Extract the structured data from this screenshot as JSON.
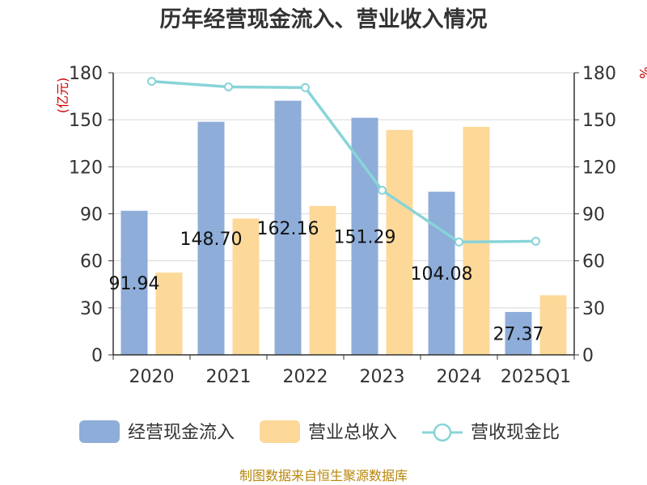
{
  "title": "历年经营现金流入、营业收入情况",
  "source": "制图数据来自恒生聚源数据库",
  "colors": {
    "bar1": "#8eadd9",
    "bar2": "#fdd999",
    "line": "#88d4d8",
    "axis": "#333333",
    "grid": "#d8d8d8"
  },
  "chart_data": {
    "type": "bar",
    "title": "历年经营现金流入、营业收入情况",
    "categories": [
      "2020",
      "2021",
      "2022",
      "2023",
      "2024",
      "2025Q1"
    ],
    "y_left": {
      "label": "(亿元)",
      "ylim": [
        0,
        180
      ],
      "ticks": [
        "0",
        "30",
        "60",
        "90",
        "120",
        "150",
        "180"
      ]
    },
    "y_right": {
      "label": "%",
      "ylim": [
        0,
        180
      ],
      "ticks": [
        "0",
        "30",
        "60",
        "90",
        "120",
        "150",
        "180"
      ]
    },
    "series": [
      {
        "name": "经营现金流入",
        "type": "bar",
        "axis": "left",
        "values": [
          91.94,
          148.7,
          162.16,
          151.29,
          104.08,
          27.37
        ]
      },
      {
        "name": "营业总收入",
        "type": "bar",
        "axis": "left",
        "values": [
          52.5,
          87.0,
          95.0,
          143.5,
          145.5,
          38.0
        ]
      },
      {
        "name": "营收现金比",
        "type": "line",
        "axis": "right",
        "values": [
          174.5,
          171.0,
          170.5,
          105.0,
          72.0,
          72.5
        ]
      }
    ],
    "data_labels": [
      "91.94",
      "148.70",
      "162.16",
      "151.29",
      "104.08",
      "27.37"
    ],
    "legend_position": "bottom",
    "grid": true
  }
}
